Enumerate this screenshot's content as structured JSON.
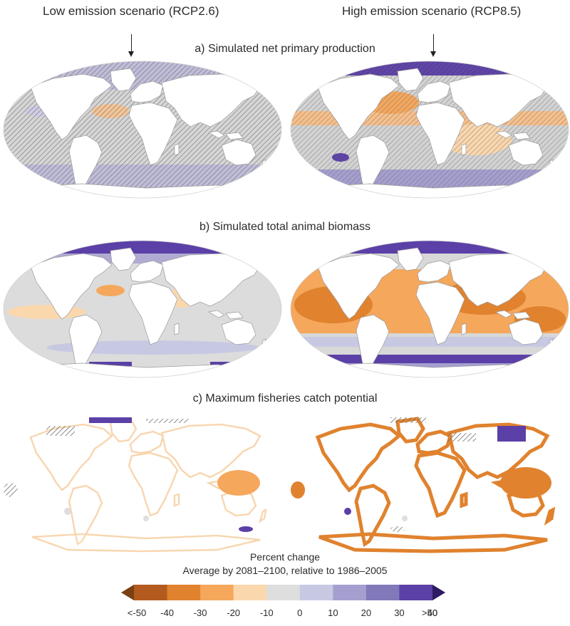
{
  "scenarios": {
    "low": "Low emission scenario (RCP2.6)",
    "high": "High emission scenario (RCP8.5)"
  },
  "panels": [
    {
      "id": "a",
      "title": "a) Simulated net primary production",
      "style": "npp"
    },
    {
      "id": "b",
      "title": "b) Simulated total animal biomass",
      "style": "biomass"
    },
    {
      "id": "c",
      "title": "c) Maximum fisheries catch potential",
      "style": "fisheries"
    }
  ],
  "legend": {
    "title": "Percent change",
    "subtitle": "Average by 2081–2100, relative to 1986–2005",
    "labels": [
      "<-50",
      "-40",
      "-30",
      "-20",
      "-10",
      "0",
      "10",
      "20",
      "30",
      "40",
      ">50"
    ],
    "colors": [
      "#7a3f12",
      "#b35a1f",
      "#e0822e",
      "#f5a75c",
      "#fbd7ae",
      "#dedede",
      "#c7c9e3",
      "#a59fd0",
      "#8179b9",
      "#5b40a7",
      "#2d1a63"
    ]
  },
  "colors": {
    "ocean_neutral": "#d8d8d8",
    "land": "#ffffff",
    "hatch": "#6f6f6f",
    "coast": "#9a9a9a"
  }
}
